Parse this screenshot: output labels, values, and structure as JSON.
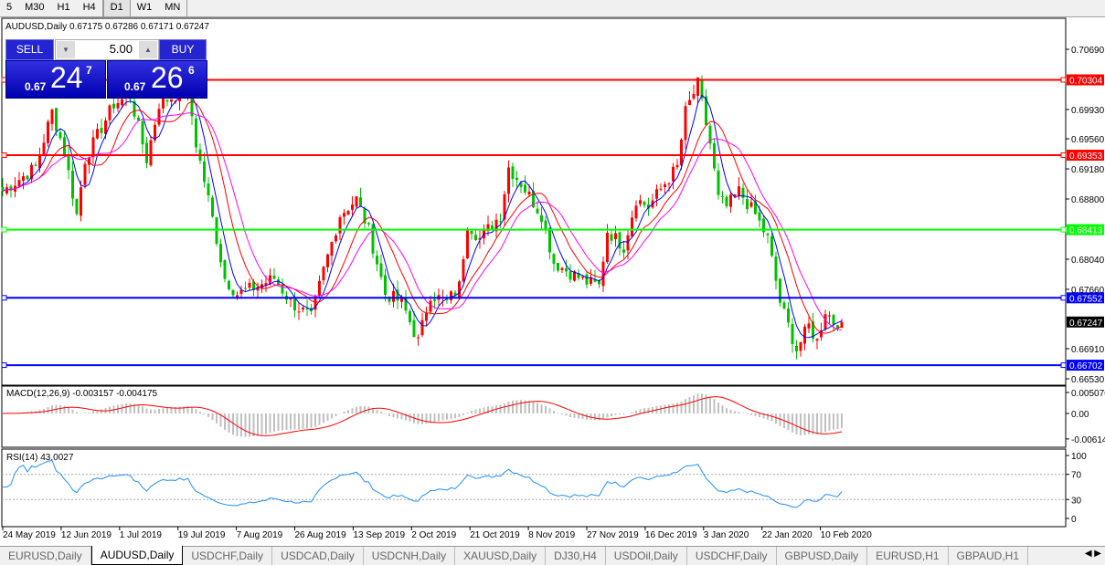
{
  "toolbar": {
    "timeframes": [
      {
        "label": "5",
        "active": false
      },
      {
        "label": "M30",
        "active": false
      },
      {
        "label": "H1",
        "active": false
      },
      {
        "label": "H4",
        "active": false
      },
      {
        "label": "D1",
        "active": true
      },
      {
        "label": "W1",
        "active": false
      },
      {
        "label": "MN",
        "active": false
      }
    ]
  },
  "chart": {
    "title": "AUDUSD,Daily  0.67175 0.67286 0.67171 0.67247",
    "symbol": "AUDUSD",
    "period": "Daily",
    "open": 0.67175,
    "high": 0.67286,
    "low": 0.67171,
    "close": 0.67247,
    "price_ticks": [
      "0.70690",
      "0.69930",
      "0.69560",
      "0.69180",
      "0.68800",
      "0.68040",
      "0.67660",
      "0.66910",
      "0.66530"
    ],
    "price_range": [
      0.6653,
      0.7069
    ],
    "levels": [
      {
        "price": "0.70304",
        "color": "#ff0000"
      },
      {
        "price": "0.69353",
        "color": "#ff0000"
      },
      {
        "price": "0.68413",
        "color": "#00ff00"
      },
      {
        "price": "0.67552",
        "color": "#0000ff"
      },
      {
        "price": "0.66702",
        "color": "#0000ff"
      }
    ],
    "current_price": "0.67247",
    "bull_color": "#ff0000",
    "bear_color": "#00c000",
    "ma_colors": [
      "#0000ff",
      "#ff0000",
      "#ff00ff"
    ],
    "price_path": [
      [
        0,
        0.689
      ],
      [
        8,
        0.692
      ],
      [
        12,
        0.699
      ],
      [
        15,
        0.694
      ],
      [
        18,
        0.686
      ],
      [
        20,
        0.693
      ],
      [
        24,
        0.697
      ],
      [
        27,
        0.7
      ],
      [
        31,
        0.701
      ],
      [
        35,
        0.693
      ],
      [
        38,
        0.7
      ],
      [
        45,
        0.702
      ],
      [
        47,
        0.695
      ],
      [
        50,
        0.688
      ],
      [
        54,
        0.678
      ],
      [
        57,
        0.676
      ],
      [
        62,
        0.677
      ],
      [
        66,
        0.678
      ],
      [
        70,
        0.675
      ],
      [
        75,
        0.673
      ],
      [
        78,
        0.679
      ],
      [
        82,
        0.686
      ],
      [
        86,
        0.688
      ],
      [
        89,
        0.684
      ],
      [
        93,
        0.676
      ],
      [
        97,
        0.675
      ],
      [
        101,
        0.67
      ],
      [
        104,
        0.676
      ],
      [
        108,
        0.675
      ],
      [
        111,
        0.677
      ],
      [
        113,
        0.685
      ],
      [
        116,
        0.683
      ],
      [
        121,
        0.686
      ],
      [
        123,
        0.692
      ],
      [
        126,
        0.69
      ],
      [
        131,
        0.686
      ],
      [
        134,
        0.68
      ],
      [
        137,
        0.679
      ],
      [
        142,
        0.6775
      ],
      [
        145,
        0.677
      ],
      [
        147,
        0.684
      ],
      [
        151,
        0.682
      ],
      [
        154,
        0.688
      ],
      [
        157,
        0.687
      ],
      [
        161,
        0.69
      ],
      [
        164,
        0.692
      ],
      [
        166,
        0.699
      ],
      [
        169,
        0.7025
      ],
      [
        172,
        0.695
      ],
      [
        174,
        0.688
      ],
      [
        176,
        0.687
      ],
      [
        179,
        0.689
      ],
      [
        183,
        0.686
      ],
      [
        186,
        0.683
      ],
      [
        189,
        0.675
      ],
      [
        193,
        0.669
      ],
      [
        196,
        0.672
      ],
      [
        198,
        0.67
      ],
      [
        200,
        0.674
      ],
      [
        202,
        0.6725
      ],
      [
        204,
        0.67247
      ]
    ],
    "date_labels": [
      "24 May 2019",
      "12 Jun 2019",
      "1 Jul 2019",
      "19 Jul 2019",
      "7 Aug 2019",
      "26 Aug 2019",
      "13 Sep 2019",
      "2 Oct 2019",
      "21 Oct 2019",
      "8 Nov 2019",
      "27 Nov 2019",
      "16 Dec 2019",
      "3 Jan 2020",
      "22 Jan 2020",
      "10 Feb 2020"
    ]
  },
  "trade_panel": {
    "sell_label": "SELL",
    "buy_label": "BUY",
    "lot": "5.00",
    "sell_price": {
      "prefix": "0.67",
      "big": "24",
      "sup": "7"
    },
    "buy_price": {
      "prefix": "0.67",
      "big": "26",
      "sup": "6"
    }
  },
  "macd": {
    "label": "MACD(12,26,9) -0.003157 -0.004175",
    "ticks": [
      "0.005076",
      "0.00",
      "-0.006148"
    ],
    "hist_color": "#c0c0c0",
    "signal_color": "#ff0000"
  },
  "rsi": {
    "label": "RSI(14) 43.0027",
    "ticks": [
      "100",
      "70",
      "30",
      "0"
    ],
    "color": "#1e90ff"
  },
  "tabs": [
    {
      "label": "EURUSD,Daily"
    },
    {
      "label": "AUDUSD,Daily",
      "active": true
    },
    {
      "label": "USDCHF,Daily"
    },
    {
      "label": "USDCAD,Daily"
    },
    {
      "label": "USDCNH,Daily"
    },
    {
      "label": "XAUUSD,Daily"
    },
    {
      "label": "DJ30,H4"
    },
    {
      "label": "USDOil,Daily"
    },
    {
      "label": "USDCHF,Daily"
    },
    {
      "label": "GBPUSD,Daily"
    },
    {
      "label": "EURUSD,H1"
    },
    {
      "label": "GBPAUD,H1"
    }
  ]
}
